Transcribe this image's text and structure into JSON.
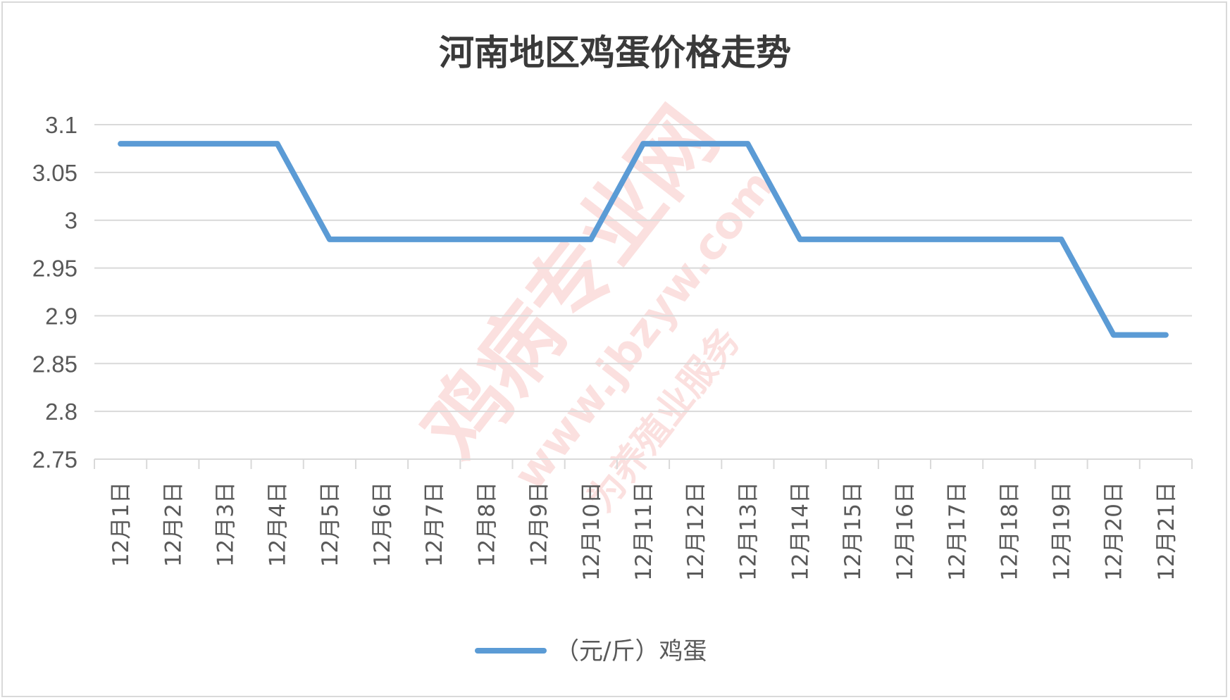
{
  "chart_data": {
    "type": "line",
    "title": "河南地区鸡蛋价格走势",
    "categories": [
      "12月1日",
      "12月2日",
      "12月3日",
      "12月4日",
      "12月5日",
      "12月6日",
      "12月7日",
      "12月8日",
      "12月9日",
      "12月10日",
      "12月11日",
      "12月12日",
      "12月13日",
      "12月14日",
      "12月15日",
      "12月16日",
      "12月17日",
      "12月18日",
      "12月19日",
      "12月20日",
      "12月21日"
    ],
    "series": [
      {
        "name": "（元/斤）鸡蛋",
        "values": [
          3.08,
          3.08,
          3.08,
          3.08,
          2.98,
          2.98,
          2.98,
          2.98,
          2.98,
          2.98,
          3.08,
          3.08,
          3.08,
          2.98,
          2.98,
          2.98,
          2.98,
          2.98,
          2.98,
          2.88,
          2.88
        ],
        "color": "#5b9bd5"
      }
    ],
    "ylim": [
      2.75,
      3.1
    ],
    "yticks": [
      "2.75",
      "2.8",
      "2.85",
      "2.9",
      "2.95",
      "3",
      "3.05",
      "3.1"
    ],
    "grid": true,
    "legend_position": "bottom",
    "xlabel": "",
    "ylabel": ""
  },
  "watermark": {
    "main": "鸡病专业网",
    "url": "www.jbzyw.com",
    "slogan": "为养殖业服务",
    "color": "#e8453c"
  }
}
